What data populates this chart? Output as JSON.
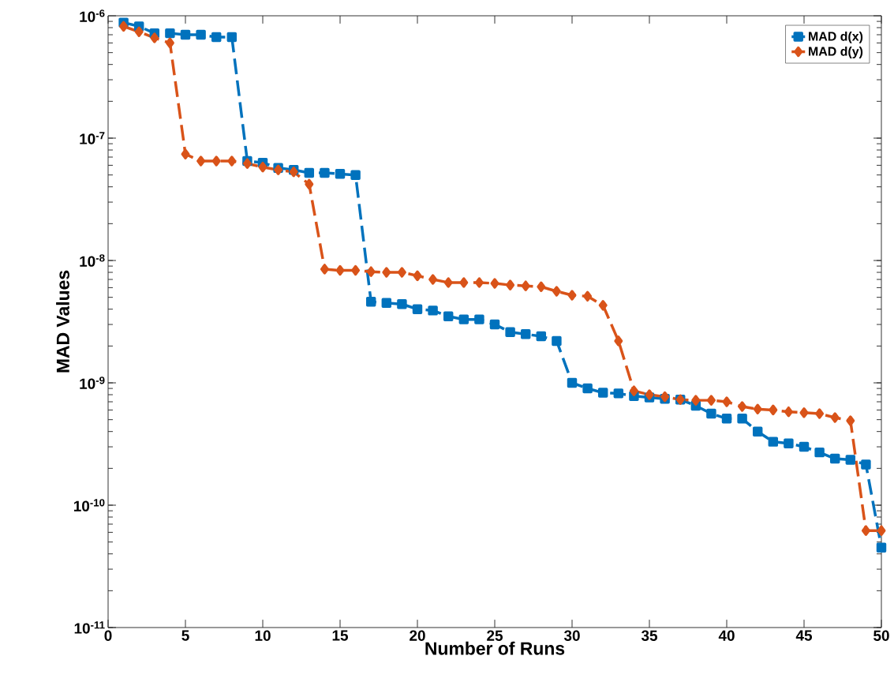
{
  "chart_data": {
    "type": "line",
    "xlabel": "Number of Runs",
    "ylabel": "MAD Values",
    "log": "y",
    "legend": "top right",
    "line_style": "dashed",
    "grid": false,
    "x": [
      1,
      2,
      3,
      4,
      5,
      6,
      7,
      8,
      9,
      10,
      11,
      12,
      13,
      14,
      15,
      16,
      17,
      18,
      19,
      20,
      21,
      22,
      23,
      24,
      25,
      26,
      27,
      28,
      29,
      30,
      31,
      32,
      33,
      34,
      35,
      36,
      37,
      38,
      39,
      40,
      41,
      42,
      43,
      44,
      45,
      46,
      47,
      48,
      49,
      50
    ],
    "xlim": [
      0,
      50
    ],
    "xticks": [
      0,
      5,
      10,
      15,
      20,
      25,
      30,
      35,
      40,
      45,
      50
    ],
    "ylim": [
      1e-11,
      1e-06
    ],
    "yticks": [
      {
        "value": 1e-11,
        "label": "10$^{-11}$"
      },
      {
        "value": 1e-10,
        "label": "10$^{-10}$"
      },
      {
        "value": 1e-09,
        "label": "10$^{-9}$"
      },
      {
        "value": 1e-08,
        "label": "10$^{-8}$"
      },
      {
        "value": 1e-07,
        "label": "10$^{-7}$"
      },
      {
        "value": 1e-06,
        "label": "10$^{-6}$"
      }
    ],
    "series": [
      {
        "name": "MAD d(x)",
        "color": "#0072bd",
        "marker": "square",
        "values": [
          8.8e-07,
          8.2e-07,
          7.2e-07,
          7.2e-07,
          7e-07,
          7e-07,
          6.7e-07,
          6.7e-07,
          6.5e-08,
          6.3e-08,
          5.7e-08,
          5.5e-08,
          5.2e-08,
          5.2e-08,
          5.1e-08,
          5e-08,
          4.6e-09,
          4.5e-09,
          4.4e-09,
          4e-09,
          3.9e-09,
          3.5e-09,
          3.3e-09,
          3.3e-09,
          3e-09,
          2.6e-09,
          2.5e-09,
          2.4e-09,
          2.2e-09,
          1e-09,
          9e-10,
          8.3e-10,
          8.2e-10,
          7.8e-10,
          7.6e-10,
          7.4e-10,
          7.3e-10,
          6.5e-10,
          5.6e-10,
          5.1e-10,
          5.1e-10,
          4e-10,
          3.3e-10,
          3.2e-10,
          3e-10,
          2.7e-10,
          2.4e-10,
          2.35e-10,
          2.15e-10,
          4.5e-11
        ]
      },
      {
        "name": "MAD d(y)",
        "color": "#d95319",
        "marker": "diamond",
        "values": [
          8.2e-07,
          7.4e-07,
          6.6e-07,
          6e-07,
          7.4e-08,
          6.5e-08,
          6.5e-08,
          6.5e-08,
          6.2e-08,
          5.8e-08,
          5.5e-08,
          5.3e-08,
          4.2e-08,
          8.5e-09,
          8.3e-09,
          8.3e-09,
          8.1e-09,
          8e-09,
          8e-09,
          7.5e-09,
          7e-09,
          6.6e-09,
          6.6e-09,
          6.6e-09,
          6.5e-09,
          6.3e-09,
          6.2e-09,
          6.1e-09,
          5.6e-09,
          5.2e-09,
          5.1e-09,
          4.3e-09,
          2.2e-09,
          8.6e-10,
          8e-10,
          7.7e-10,
          7.3e-10,
          7.2e-10,
          7.2e-10,
          7e-10,
          6.4e-10,
          6.1e-10,
          6e-10,
          5.8e-10,
          5.7e-10,
          5.6e-10,
          5.2e-10,
          4.9e-10,
          6.2e-11,
          6.2e-11
        ]
      }
    ]
  }
}
